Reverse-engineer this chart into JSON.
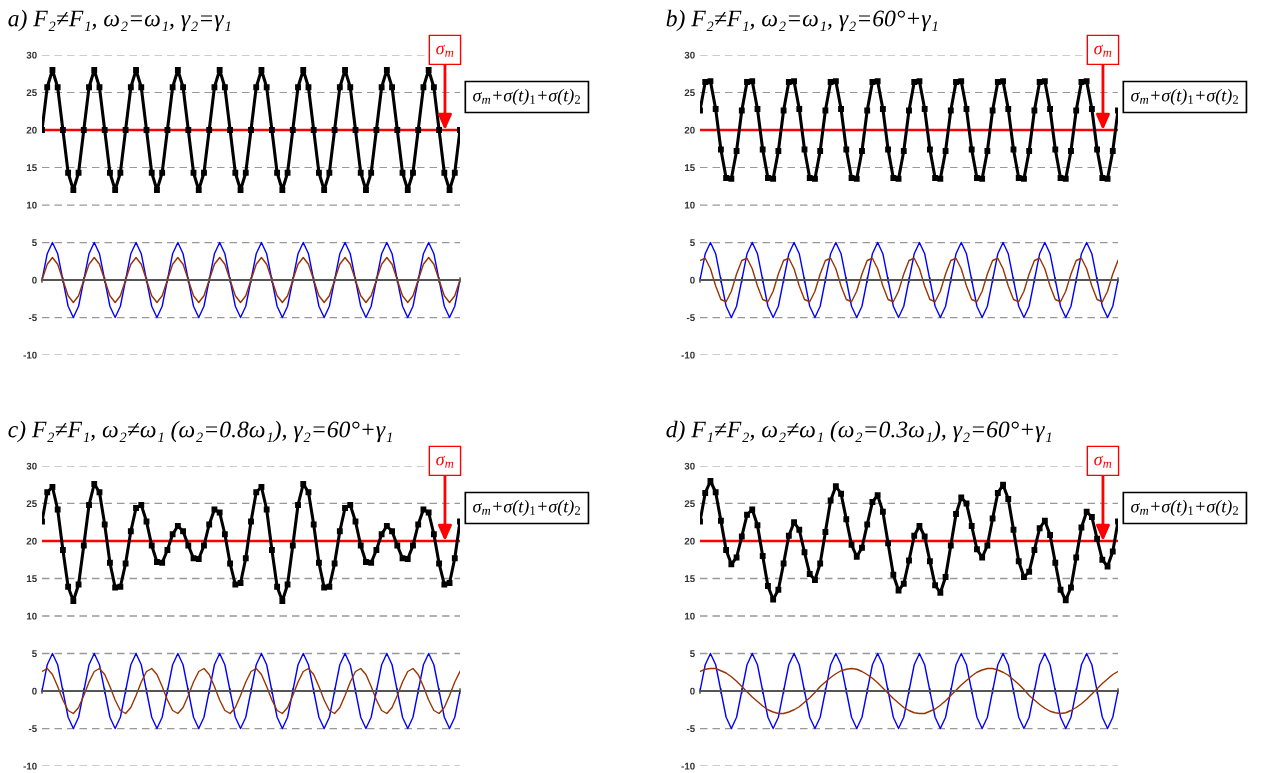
{
  "chart_data": [
    {
      "type": "line",
      "title": "a) F₂≠F₁, ω₂=ω₁, γ₂=γ₁",
      "categories": [
        null,
        null,
        null,
        null,
        null,
        null,
        null,
        null,
        null,
        null,
        null,
        null,
        null,
        null,
        null,
        null,
        null,
        null,
        null,
        null,
        null,
        null,
        null,
        null,
        null,
        null,
        null,
        null,
        null,
        null,
        null,
        null,
        null,
        null,
        null,
        null,
        null,
        null,
        null,
        null,
        null,
        null,
        null,
        null,
        null,
        null,
        null,
        null,
        null,
        null,
        null,
        null,
        null,
        null,
        null,
        null,
        null,
        null,
        null,
        null,
        null,
        null,
        null,
        null,
        null,
        null,
        null,
        null,
        null,
        null,
        null,
        null,
        null,
        null,
        null,
        null,
        null,
        null,
        null,
        null,
        null
      ],
      "ylim": [
        -10,
        30
      ],
      "yticks": [
        -10,
        -5,
        0,
        5,
        10,
        15,
        20,
        25,
        30
      ],
      "grid": "y",
      "tick_labels": "y",
      "ref_lines": [
        {
          "axis": "y",
          "value": 20,
          "label": "σ$_{m}$",
          "color": "#ff0000"
        }
      ],
      "series": [
        {
          "name": "σ$_{m}$+σ(t)$_{1}$+σ(t)$_{2}$",
          "color": "#000000",
          "marker": "square",
          "values": [
            20,
            25.7,
            28,
            25.7,
            20,
            14.3,
            12,
            14.3,
            20,
            25.7,
            28,
            25.7,
            20,
            14.3,
            12,
            14.3,
            20,
            25.7,
            28,
            25.7,
            20,
            14.3,
            12,
            14.3,
            20,
            25.7,
            28,
            25.7,
            20,
            14.3,
            12,
            14.3,
            20,
            25.7,
            28,
            25.7,
            20,
            14.3,
            12,
            14.3,
            20,
            25.7,
            28,
            25.7,
            20,
            14.3,
            12,
            14.3,
            20,
            25.7,
            28,
            25.7,
            20,
            14.3,
            12,
            14.3,
            20,
            25.7,
            28,
            25.7,
            20,
            14.3,
            12,
            14.3,
            20,
            25.7,
            28,
            25.7,
            20,
            14.3,
            12,
            14.3,
            20,
            25.7,
            28,
            25.7,
            20,
            14.3,
            12,
            14.3,
            20
          ]
        },
        {
          "color": "#0000ff",
          "values": [
            0,
            3.5,
            5,
            3.5,
            0,
            -3.5,
            -5,
            -3.5,
            0,
            3.5,
            5,
            3.5,
            0,
            -3.5,
            -5,
            -3.5,
            0,
            3.5,
            5,
            3.5,
            0,
            -3.5,
            -5,
            -3.5,
            0,
            3.5,
            5,
            3.5,
            0,
            -3.5,
            -5,
            -3.5,
            0,
            3.5,
            5,
            3.5,
            0,
            -3.5,
            -5,
            -3.5,
            0,
            3.5,
            5,
            3.5,
            0,
            -3.5,
            -5,
            -3.5,
            0,
            3.5,
            5,
            3.5,
            0,
            -3.5,
            -5,
            -3.5,
            0,
            3.5,
            5,
            3.5,
            0,
            -3.5,
            -5,
            -3.5,
            0,
            3.5,
            5,
            3.5,
            0,
            -3.5,
            -5,
            -3.5,
            0,
            3.5,
            5,
            3.5,
            0,
            -3.5,
            -5,
            -3.5,
            0
          ]
        },
        {
          "color": "#993300",
          "values": [
            0,
            2.1,
            3,
            2.1,
            0,
            -2.1,
            -3,
            -2.1,
            0,
            2.1,
            3,
            2.1,
            0,
            -2.1,
            -3,
            -2.1,
            0,
            2.1,
            3,
            2.1,
            0,
            -2.1,
            -3,
            -2.1,
            0,
            2.1,
            3,
            2.1,
            0,
            -2.1,
            -3,
            -2.1,
            0,
            2.1,
            3,
            2.1,
            0,
            -2.1,
            -3,
            -2.1,
            0,
            2.1,
            3,
            2.1,
            0,
            -2.1,
            -3,
            -2.1,
            0,
            2.1,
            3,
            2.1,
            0,
            -2.1,
            -3,
            -2.1,
            0,
            2.1,
            3,
            2.1,
            0,
            -2.1,
            -3,
            -2.1,
            0,
            2.1,
            3,
            2.1,
            0,
            -2.1,
            -3,
            -2.1,
            0,
            2.1,
            3,
            2.1,
            0,
            -2.1,
            -3,
            -2.1,
            0
          ]
        }
      ]
    },
    {
      "type": "line",
      "title": "b) F₂≠F₁, ω₂=ω₁, γ₂=60°+γ₁",
      "categories": [
        null,
        null,
        null,
        null,
        null,
        null,
        null,
        null,
        null,
        null,
        null,
        null,
        null,
        null,
        null,
        null,
        null,
        null,
        null,
        null,
        null,
        null,
        null,
        null,
        null,
        null,
        null,
        null,
        null,
        null,
        null,
        null,
        null,
        null,
        null,
        null,
        null,
        null,
        null,
        null,
        null,
        null,
        null,
        null,
        null,
        null,
        null,
        null,
        null,
        null,
        null,
        null,
        null,
        null,
        null,
        null,
        null,
        null,
        null,
        null,
        null,
        null,
        null,
        null,
        null,
        null,
        null,
        null,
        null,
        null,
        null,
        null,
        null,
        null,
        null,
        null,
        null,
        null,
        null,
        null,
        null
      ],
      "ylim": [
        -10,
        30
      ],
      "yticks": [
        -10,
        -5,
        0,
        5,
        10,
        15,
        20,
        25,
        30
      ],
      "grid": "y",
      "tick_labels": "y",
      "ref_lines": [
        {
          "axis": "y",
          "value": 20,
          "label": "σ$_{m}$",
          "color": "#ff0000"
        }
      ],
      "series": [
        {
          "name": "σ$_{m}$+σ(t)$_{1}$+σ(t)$_{2}$",
          "color": "#000000",
          "marker": "square",
          "values": [
            22.6,
            26.4,
            26.5,
            22.8,
            17.4,
            13.6,
            13.5,
            17.2,
            22.6,
            26.4,
            26.5,
            22.8,
            17.4,
            13.6,
            13.5,
            17.2,
            22.6,
            26.4,
            26.5,
            22.8,
            17.4,
            13.6,
            13.5,
            17.2,
            22.6,
            26.4,
            26.5,
            22.8,
            17.4,
            13.6,
            13.5,
            17.2,
            22.6,
            26.4,
            26.5,
            22.8,
            17.4,
            13.6,
            13.5,
            17.2,
            22.6,
            26.4,
            26.5,
            22.8,
            17.4,
            13.6,
            13.5,
            17.2,
            22.6,
            26.4,
            26.5,
            22.8,
            17.4,
            13.6,
            13.5,
            17.2,
            22.6,
            26.4,
            26.5,
            22.8,
            17.4,
            13.6,
            13.5,
            17.2,
            22.6,
            26.4,
            26.5,
            22.8,
            17.4,
            13.6,
            13.5,
            17.2,
            22.6,
            26.4,
            26.5,
            22.8,
            17.4,
            13.6,
            13.5,
            17.2,
            22.6
          ]
        },
        {
          "color": "#0000ff",
          "values": [
            0,
            3.5,
            5,
            3.5,
            0,
            -3.5,
            -5,
            -3.5,
            0,
            3.5,
            5,
            3.5,
            0,
            -3.5,
            -5,
            -3.5,
            0,
            3.5,
            5,
            3.5,
            0,
            -3.5,
            -5,
            -3.5,
            0,
            3.5,
            5,
            3.5,
            0,
            -3.5,
            -5,
            -3.5,
            0,
            3.5,
            5,
            3.5,
            0,
            -3.5,
            -5,
            -3.5,
            0,
            3.5,
            5,
            3.5,
            0,
            -3.5,
            -5,
            -3.5,
            0,
            3.5,
            5,
            3.5,
            0,
            -3.5,
            -5,
            -3.5,
            0,
            3.5,
            5,
            3.5,
            0,
            -3.5,
            -5,
            -3.5,
            0,
            3.5,
            5,
            3.5,
            0,
            -3.5,
            -5,
            -3.5,
            0,
            3.5,
            5,
            3.5,
            0,
            -3.5,
            -5,
            -3.5,
            0
          ]
        },
        {
          "color": "#993300",
          "values": [
            2.6,
            2.9,
            1.5,
            -0.8,
            -2.6,
            -2.9,
            -1.5,
            0.8,
            2.6,
            2.9,
            1.5,
            -0.8,
            -2.6,
            -2.9,
            -1.5,
            0.8,
            2.6,
            2.9,
            1.5,
            -0.8,
            -2.6,
            -2.9,
            -1.5,
            0.8,
            2.6,
            2.9,
            1.5,
            -0.8,
            -2.6,
            -2.9,
            -1.5,
            0.8,
            2.6,
            2.9,
            1.5,
            -0.8,
            -2.6,
            -2.9,
            -1.5,
            0.8,
            2.6,
            2.9,
            1.5,
            -0.8,
            -2.6,
            -2.9,
            -1.5,
            0.8,
            2.6,
            2.9,
            1.5,
            -0.8,
            -2.6,
            -2.9,
            -1.5,
            0.8,
            2.6,
            2.9,
            1.5,
            -0.8,
            -2.6,
            -2.9,
            -1.5,
            0.8,
            2.6,
            2.9,
            1.5,
            -0.8,
            -2.6,
            -2.9,
            -1.5,
            0.8,
            2.6,
            2.9,
            1.5,
            -0.8,
            -2.6,
            -2.9,
            -1.5,
            0.8,
            2.6
          ]
        }
      ]
    },
    {
      "type": "line",
      "title": "c) F₂≠F₁, ω₂≠ω₁ (ω₂=0.8ω₁), γ₂=60°+γ₁",
      "categories": [
        null,
        null,
        null,
        null,
        null,
        null,
        null,
        null,
        null,
        null,
        null,
        null,
        null,
        null,
        null,
        null,
        null,
        null,
        null,
        null,
        null,
        null,
        null,
        null,
        null,
        null,
        null,
        null,
        null,
        null,
        null,
        null,
        null,
        null,
        null,
        null,
        null,
        null,
        null,
        null,
        null,
        null,
        null,
        null,
        null,
        null,
        null,
        null,
        null,
        null,
        null,
        null,
        null,
        null,
        null,
        null,
        null,
        null,
        null,
        null,
        null,
        null,
        null,
        null,
        null,
        null,
        null,
        null,
        null,
        null,
        null,
        null,
        null,
        null,
        null,
        null,
        null,
        null,
        null,
        null,
        null
      ],
      "ylim": [
        -10,
        30
      ],
      "yticks": [
        -10,
        -5,
        0,
        5,
        10,
        15,
        20,
        25,
        30
      ],
      "grid": "y",
      "tick_labels": "y",
      "ref_lines": [
        {
          "axis": "y",
          "value": 20,
          "label": "σ$_{m}$",
          "color": "#ff0000"
        }
      ],
      "series": [
        {
          "name": "σ$_{m}$+σ(t)$_{1}$+σ(t)$_{2}$",
          "color": "#000000",
          "marker": "square",
          "values": [
            22.6,
            26.5,
            27.2,
            24.2,
            18.8,
            13.9,
            12,
            14.2,
            19.4,
            24.8,
            27.6,
            26.5,
            22.2,
            17.1,
            13.8,
            13.9,
            17,
            21.3,
            24.4,
            24.8,
            22.6,
            19.4,
            17.2,
            17.1,
            18.8,
            20.9,
            22,
            21.3,
            19.4,
            17.7,
            17.6,
            19.4,
            22.2,
            24.2,
            23.8,
            20.9,
            17,
            14.2,
            14.4,
            17.7,
            22.6,
            26.5,
            27.2,
            24.2,
            18.8,
            13.9,
            12,
            14.2,
            19.4,
            24.8,
            27.6,
            26.5,
            22.2,
            17.1,
            13.8,
            13.9,
            17,
            21.3,
            24.4,
            24.8,
            22.6,
            19.4,
            17.2,
            17.1,
            18.8,
            20.9,
            22,
            21.3,
            19.4,
            17.7,
            17.6,
            19.4,
            22.2,
            24.2,
            23.8,
            20.9,
            17,
            14.2,
            14.4,
            17.7,
            22.6
          ]
        },
        {
          "color": "#0000ff",
          "values": [
            0,
            3.5,
            5,
            3.5,
            0,
            -3.5,
            -5,
            -3.5,
            0,
            3.5,
            5,
            3.5,
            0,
            -3.5,
            -5,
            -3.5,
            0,
            3.5,
            5,
            3.5,
            0,
            -3.5,
            -5,
            -3.5,
            0,
            3.5,
            5,
            3.5,
            0,
            -3.5,
            -5,
            -3.5,
            0,
            3.5,
            5,
            3.5,
            0,
            -3.5,
            -5,
            -3.5,
            0,
            3.5,
            5,
            3.5,
            0,
            -3.5,
            -5,
            -3.5,
            0,
            3.5,
            5,
            3.5,
            0,
            -3.5,
            -5,
            -3.5,
            0,
            3.5,
            5,
            3.5,
            0,
            -3.5,
            -5,
            -3.5,
            0,
            3.5,
            5,
            3.5,
            0,
            -3.5,
            -5,
            -3.5,
            0,
            3.5,
            5,
            3.5,
            0,
            -3.5,
            -5,
            -3.5,
            0
          ]
        },
        {
          "color": "#993300",
          "values": [
            2.6,
            3,
            2.2,
            0.6,
            -1.2,
            -2.6,
            -3,
            -2.2,
            -0.6,
            1.2,
            2.6,
            3,
            2.2,
            0.6,
            -1.2,
            -2.6,
            -3,
            -2.2,
            -0.6,
            1.2,
            2.6,
            3,
            2.2,
            0.6,
            -1.2,
            -2.6,
            -3,
            -2.2,
            -0.6,
            1.2,
            2.6,
            3,
            2.2,
            0.6,
            -1.2,
            -2.6,
            -3,
            -2.2,
            -0.6,
            1.2,
            2.6,
            3,
            2.2,
            0.6,
            -1.2,
            -2.6,
            -3,
            -2.2,
            -0.6,
            1.2,
            2.6,
            3,
            2.2,
            0.6,
            -1.2,
            -2.6,
            -3,
            -2.2,
            -0.6,
            1.2,
            2.6,
            3,
            2.2,
            0.6,
            -1.2,
            -2.6,
            -3,
            -2.2,
            -0.6,
            1.2,
            2.6,
            3,
            2.2,
            0.6,
            -1.2,
            -2.6,
            -3,
            -2.2,
            -0.6,
            1.2,
            2.6
          ]
        }
      ]
    },
    {
      "type": "line",
      "title": "d) F₁≠F₂, ω₂≠ω₁ (ω₂=0.3ω₁), γ₂=60°+γ₁",
      "categories": [
        null,
        null,
        null,
        null,
        null,
        null,
        null,
        null,
        null,
        null,
        null,
        null,
        null,
        null,
        null,
        null,
        null,
        null,
        null,
        null,
        null,
        null,
        null,
        null,
        null,
        null,
        null,
        null,
        null,
        null,
        null,
        null,
        null,
        null,
        null,
        null,
        null,
        null,
        null,
        null,
        null,
        null,
        null,
        null,
        null,
        null,
        null,
        null,
        null,
        null,
        null,
        null,
        null,
        null,
        null,
        null,
        null,
        null,
        null,
        null,
        null,
        null,
        null,
        null,
        null,
        null,
        null,
        null,
        null,
        null,
        null,
        null,
        null,
        null,
        null,
        null,
        null,
        null,
        null,
        null,
        null
      ],
      "ylim": [
        -10,
        30
      ],
      "yticks": [
        -10,
        -5,
        0,
        5,
        10,
        15,
        20,
        25,
        30
      ],
      "grid": "y",
      "tick_labels": "y",
      "ref_lines": [
        {
          "axis": "y",
          "value": 20,
          "label": "σ$_{m}$",
          "color": "#ff0000"
        }
      ],
      "series": [
        {
          "name": "σ$_{m}$+σ(t)$_{1}$+σ(t)$_{2}$",
          "color": "#000000",
          "marker": "square",
          "values": [
            22.6,
            26.4,
            28,
            26.5,
            22.7,
            18.8,
            16.9,
            17.8,
            20.6,
            23.5,
            24.2,
            22.1,
            18,
            14,
            12.2,
            13.5,
            17,
            20.7,
            22.5,
            21.5,
            18.5,
            15.6,
            14.8,
            17,
            21.2,
            25.4,
            27.3,
            26.3,
            22.9,
            19.5,
            17.9,
            19.1,
            22.2,
            25.2,
            26.1,
            23.9,
            19.7,
            15.5,
            13.4,
            14.3,
            17.4,
            20.7,
            22,
            20.6,
            17.3,
            14.1,
            13.1,
            15.2,
            19.4,
            23.6,
            25.8,
            25,
            22,
            18.9,
            17.8,
            19.4,
            23,
            26.4,
            27.5,
            25.6,
            21.5,
            17.3,
            15.2,
            15.9,
            18.8,
            21.7,
            22.7,
            20.8,
            17.1,
            13.5,
            12.1,
            13.8,
            17.8,
            21.8,
            23.9,
            23.2,
            20.3,
            17.5,
            16.6,
            18.6,
            22.6
          ]
        },
        {
          "color": "#0000ff",
          "values": [
            0,
            3.5,
            5,
            3.5,
            0,
            -3.5,
            -5,
            -3.5,
            0,
            3.5,
            5,
            3.5,
            0,
            -3.5,
            -5,
            -3.5,
            0,
            3.5,
            5,
            3.5,
            0,
            -3.5,
            -5,
            -3.5,
            0,
            3.5,
            5,
            3.5,
            0,
            -3.5,
            -5,
            -3.5,
            0,
            3.5,
            5,
            3.5,
            0,
            -3.5,
            -5,
            -3.5,
            0,
            3.5,
            5,
            3.5,
            0,
            -3.5,
            -5,
            -3.5,
            0,
            3.5,
            5,
            3.5,
            0,
            -3.5,
            -5,
            -3.5,
            0,
            3.5,
            5,
            3.5,
            0,
            -3.5,
            -5,
            -3.5,
            0,
            3.5,
            5,
            3.5,
            0,
            -3.5,
            -5,
            -3.5,
            0,
            3.5,
            5,
            3.5,
            0,
            -3.5,
            -5,
            -3.5,
            0
          ]
        },
        {
          "color": "#993300",
          "values": [
            2.6,
            2.9,
            3,
            3,
            2.7,
            2.4,
            1.9,
            1.3,
            0.6,
            -0.1,
            -0.8,
            -1.4,
            -2,
            -2.5,
            -2.8,
            -3,
            -3,
            -2.8,
            -2.5,
            -2.1,
            -1.5,
            -0.9,
            -0.2,
            0.6,
            1.2,
            1.8,
            2.3,
            2.7,
            2.9,
            3,
            2.9,
            2.6,
            2.2,
            1.7,
            1.1,
            0.4,
            -0.3,
            -1,
            -1.6,
            -2.2,
            -2.6,
            -2.9,
            -3,
            -3,
            -2.7,
            -2.4,
            -1.9,
            -1.3,
            -0.6,
            0.1,
            0.8,
            1.4,
            2,
            2.5,
            2.8,
            3,
            3,
            2.8,
            2.5,
            2.1,
            1.5,
            0.9,
            0.2,
            -0.6,
            -1.2,
            -1.8,
            -2.3,
            -2.7,
            -2.9,
            -3,
            -2.9,
            -2.6,
            -2.2,
            -1.7,
            -1.1,
            -0.4,
            0.3,
            1,
            1.6,
            2.2,
            2.6
          ]
        }
      ]
    }
  ]
}
